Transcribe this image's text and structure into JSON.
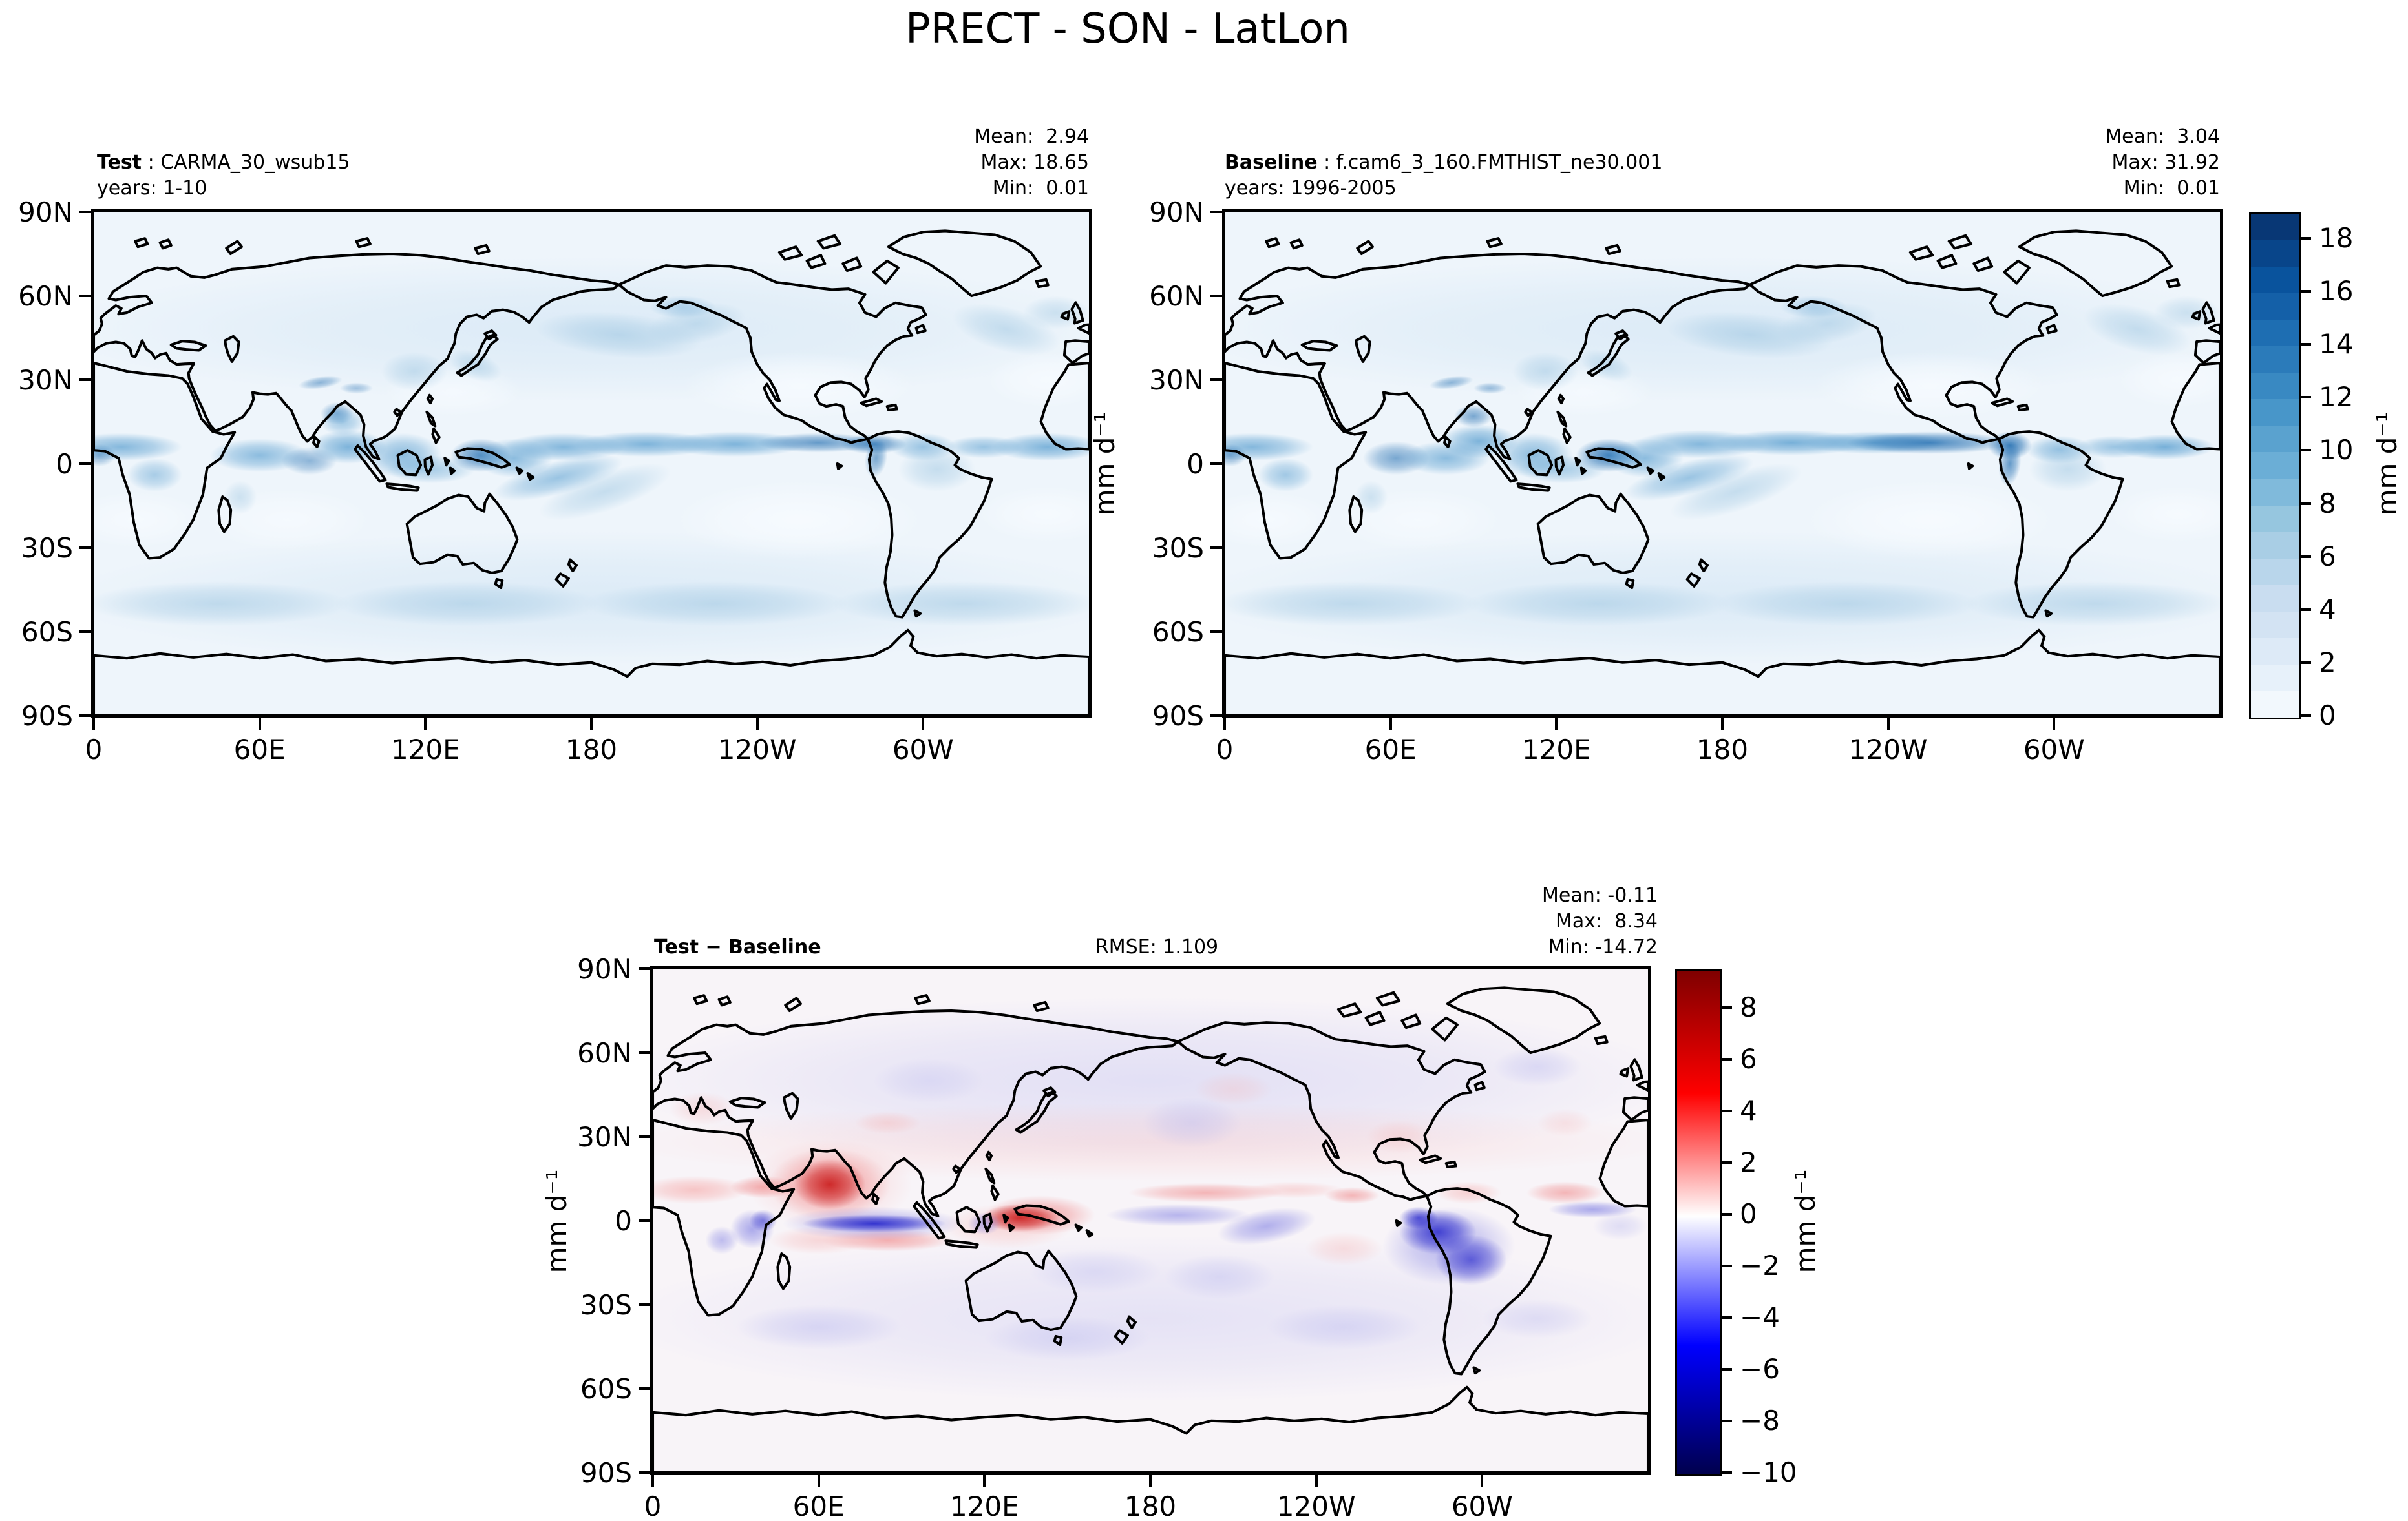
{
  "title": "PRECT - SON - LatLon",
  "panels": {
    "test": {
      "name_bold": "Test",
      "name_rest": " : CARMA_30_wsub15",
      "years": "years: 1-10",
      "stats": {
        "mean": "Mean:  2.94",
        "max": "Max: 18.65",
        "min": "Min:  0.01"
      }
    },
    "baseline": {
      "name_bold": "Baseline",
      "name_rest": " : f.cam6_3_160.FMTHIST_ne30.001",
      "years": "years: 1996-2005",
      "stats": {
        "mean": "Mean:  3.04",
        "max": "Max: 31.92",
        "min": "Min:  0.01"
      }
    },
    "diff": {
      "name_bold": "Test − Baseline",
      "rmse": "RMSE: 1.109",
      "stats": {
        "mean": "Mean: -0.11",
        "max": "Max:  8.34",
        "min": "Min: -14.72"
      }
    }
  },
  "axes": {
    "lon_ticks": [
      "0",
      "60E",
      "120E",
      "180",
      "120W",
      "60W"
    ],
    "lat_ticks": [
      "90N",
      "60N",
      "30N",
      "0",
      "30S",
      "60S",
      "90S"
    ]
  },
  "colorbars": {
    "precip": {
      "unit": "mm d⁻¹",
      "vmin": 0,
      "vmax": 19,
      "n_bands": 19,
      "ticks": [
        "0",
        "2",
        "4",
        "6",
        "8",
        "10",
        "12",
        "14",
        "16",
        "18"
      ],
      "tick_values": [
        0,
        2,
        4,
        6,
        8,
        10,
        12,
        14,
        16,
        18
      ],
      "cmap_anchors": [
        "#f7fbff",
        "#deebf7",
        "#c6dbef",
        "#9ecae1",
        "#6baed6",
        "#4292c6",
        "#2171b5",
        "#08519c",
        "#08306b"
      ]
    },
    "diff": {
      "unit": "mm d⁻¹",
      "vmin": -10,
      "vmax": 9.5,
      "ticks": [
        "8",
        "6",
        "4",
        "2",
        "0",
        "−2",
        "−4",
        "−6",
        "−8",
        "−10"
      ],
      "tick_values": [
        8,
        6,
        4,
        2,
        0,
        -2,
        -4,
        -6,
        -8,
        -10
      ],
      "cmap_anchors": [
        "#00004d",
        "#0000ff",
        "#ffffff",
        "#ff0000",
        "#7f0000"
      ]
    }
  },
  "chart_data": [
    {
      "panel": "test",
      "type": "heatmap",
      "variable": "PRECT",
      "season": "SON",
      "projection": "LatLon",
      "title": "Test : CARMA_30_wsub15",
      "subtitle": "years: 1-10",
      "units": "mm d⁻¹",
      "stats": {
        "mean": 2.94,
        "max": 18.65,
        "min": 0.01
      },
      "colormap": "Blues",
      "levels_range": [
        0,
        19
      ],
      "lon_ticks": [
        "0",
        "60E",
        "120E",
        "180",
        "120W",
        "60W"
      ],
      "lat_ticks": [
        "90N",
        "60N",
        "30N",
        "0",
        "30S",
        "60S",
        "90S"
      ]
    },
    {
      "panel": "baseline",
      "type": "heatmap",
      "variable": "PRECT",
      "season": "SON",
      "projection": "LatLon",
      "title": "Baseline : f.cam6_3_160.FMTHIST_ne30.001",
      "subtitle": "years: 1996-2005",
      "units": "mm d⁻¹",
      "stats": {
        "mean": 3.04,
        "max": 31.92,
        "min": 0.01
      },
      "colormap": "Blues",
      "levels_range": [
        0,
        19
      ],
      "lon_ticks": [
        "0",
        "60E",
        "120E",
        "180",
        "120W",
        "60W"
      ],
      "lat_ticks": [
        "90N",
        "60N",
        "30N",
        "0",
        "30S",
        "60S",
        "90S"
      ]
    },
    {
      "panel": "difference",
      "type": "heatmap",
      "variable": "PRECT",
      "season": "SON",
      "projection": "LatLon",
      "title": "Test − Baseline",
      "units": "mm d⁻¹",
      "stats": {
        "mean": -0.11,
        "max": 8.34,
        "min": -14.72,
        "rmse": 1.109
      },
      "colormap": "seismic (blue-white-red diverging)",
      "levels_range": [
        -10,
        9.5
      ],
      "lon_ticks": [
        "0",
        "60E",
        "120E",
        "180",
        "120W",
        "60W"
      ],
      "lat_ticks": [
        "90N",
        "60N",
        "30N",
        "0",
        "30S",
        "60S",
        "90S"
      ]
    }
  ]
}
